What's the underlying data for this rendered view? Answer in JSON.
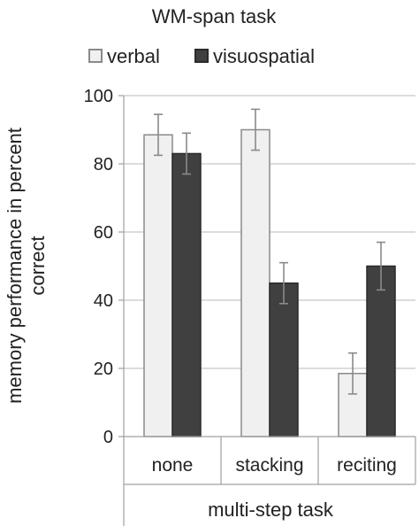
{
  "chart_data": {
    "type": "bar",
    "title": "WM-span task",
    "xlabel": "multi-step task",
    "ylabel": "memory performance in percent correct",
    "ylabel_lines": [
      "memory performance in percent",
      "correct"
    ],
    "categories": [
      "none",
      "stacking",
      "reciting"
    ],
    "ylim": [
      0,
      100
    ],
    "yticks": [
      0,
      20,
      40,
      60,
      80,
      100
    ],
    "grid": true,
    "legend_position": "top",
    "series": [
      {
        "name": "verbal",
        "values": [
          88.5,
          90,
          18.5
        ],
        "error": [
          6,
          6,
          6
        ],
        "color": "#f0f0f0",
        "stroke": "#8a8a8a"
      },
      {
        "name": "visuospatial",
        "values": [
          83,
          45,
          50
        ],
        "error": [
          6,
          6,
          7
        ],
        "color": "#404040",
        "stroke": "#2a2a2a"
      }
    ]
  }
}
